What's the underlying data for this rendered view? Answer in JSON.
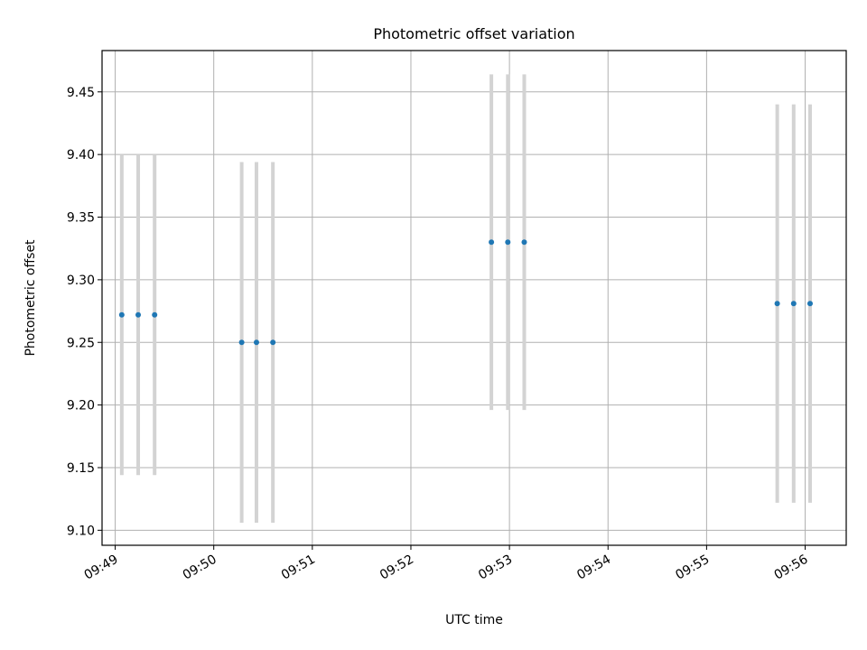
{
  "chart_data": {
    "type": "scatter",
    "title": "Photometric offset variation",
    "xlabel": "UTC time",
    "ylabel": "Photometric offset",
    "x_ticks": [
      "09:49",
      "09:50",
      "09:51",
      "09:52",
      "09:53",
      "09:54",
      "09:55",
      "09:56"
    ],
    "y_ticks": [
      "9.10",
      "9.15",
      "9.20",
      "9.25",
      "9.30",
      "9.35",
      "9.40",
      "9.45"
    ],
    "xlim": [
      "09:48:52",
      "09:56:25"
    ],
    "ylim": [
      9.088,
      9.483
    ],
    "grid": true,
    "marker_color": "#1f77b4",
    "errorbar_color": "#d3d3d3",
    "points": [
      {
        "x": "09:49:04",
        "y": 9.272,
        "yerr": 0.128
      },
      {
        "x": "09:49:14",
        "y": 9.272,
        "yerr": 0.128
      },
      {
        "x": "09:49:24",
        "y": 9.272,
        "yerr": 0.128
      },
      {
        "x": "09:50:17",
        "y": 9.25,
        "yerr": 0.144
      },
      {
        "x": "09:50:26",
        "y": 9.25,
        "yerr": 0.144
      },
      {
        "x": "09:50:36",
        "y": 9.25,
        "yerr": 0.144
      },
      {
        "x": "09:52:49",
        "y": 9.33,
        "yerr": 0.134
      },
      {
        "x": "09:52:59",
        "y": 9.33,
        "yerr": 0.134
      },
      {
        "x": "09:53:09",
        "y": 9.33,
        "yerr": 0.134
      },
      {
        "x": "09:55:43",
        "y": 9.281,
        "yerr": 0.159
      },
      {
        "x": "09:55:53",
        "y": 9.281,
        "yerr": 0.159
      },
      {
        "x": "09:56:03",
        "y": 9.281,
        "yerr": 0.159
      }
    ]
  }
}
